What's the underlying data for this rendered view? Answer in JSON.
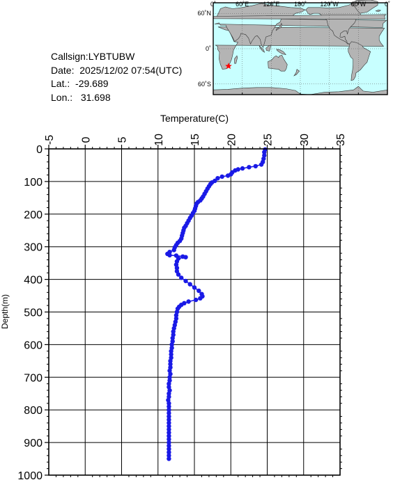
{
  "station": {
    "callsign_label": "Callsign:",
    "callsign": "LYBTUBW",
    "date_label": "Date:",
    "date": "2025/12/02 07:54(UTC)",
    "lat_label": "Lat.:",
    "lat": "-29.689",
    "lon_label": "Lon.:",
    "lon": "31.698"
  },
  "map": {
    "lon_labels": [
      "0˚",
      "60˚E",
      "120˚E",
      "180˚",
      "120˚W",
      "60˚W",
      "0˚"
    ],
    "lat_labels": [
      "60˚N",
      "0˚",
      "60˚S"
    ],
    "ocean_color": "#c8ffff",
    "land_color": "#b4b4b4",
    "marker_color": "#ff0000",
    "marker": {
      "lon": 31.698,
      "lat": -29.689
    }
  },
  "chart_data": {
    "type": "line",
    "xlabel": "Temperature(C)",
    "ylabel": "Depth(m)",
    "xlim": [
      -5,
      35
    ],
    "ylim": [
      0,
      1000
    ],
    "x_ticks": [
      -5,
      0,
      5,
      10,
      15,
      20,
      25,
      30,
      35
    ],
    "y_ticks": [
      0,
      100,
      200,
      300,
      400,
      500,
      600,
      700,
      800,
      900,
      1000
    ],
    "series_color": "#1a1ae6",
    "points": [
      [
        24.7,
        2
      ],
      [
        24.6,
        10
      ],
      [
        24.6,
        20
      ],
      [
        24.5,
        30
      ],
      [
        24.4,
        40
      ],
      [
        24.2,
        48
      ],
      [
        23.4,
        53
      ],
      [
        22.5,
        56
      ],
      [
        21.6,
        60
      ],
      [
        21.0,
        63
      ],
      [
        20.6,
        66
      ],
      [
        20.2,
        72
      ],
      [
        20.0,
        78
      ],
      [
        19.6,
        82
      ],
      [
        18.8,
        85
      ],
      [
        18.2,
        90
      ],
      [
        17.8,
        98
      ],
      [
        17.4,
        103
      ],
      [
        17.2,
        108
      ],
      [
        17.0,
        115
      ],
      [
        16.8,
        122
      ],
      [
        16.6,
        130
      ],
      [
        16.4,
        138
      ],
      [
        16.2,
        146
      ],
      [
        16.0,
        152
      ],
      [
        15.8,
        158
      ],
      [
        15.5,
        163
      ],
      [
        15.3,
        168
      ],
      [
        15.2,
        175
      ],
      [
        15.1,
        183
      ],
      [
        15.0,
        190
      ],
      [
        14.8,
        197
      ],
      [
        14.6,
        205
      ],
      [
        14.4,
        212
      ],
      [
        14.2,
        220
      ],
      [
        14.0,
        228
      ],
      [
        13.8,
        236
      ],
      [
        13.6,
        242
      ],
      [
        13.5,
        250
      ],
      [
        13.4,
        258
      ],
      [
        13.3,
        266
      ],
      [
        13.2,
        275
      ],
      [
        13.0,
        282
      ],
      [
        12.7,
        288
      ],
      [
        12.5,
        295
      ],
      [
        12.3,
        302
      ],
      [
        12.2,
        310
      ],
      [
        11.6,
        316
      ],
      [
        11.3,
        322
      ],
      [
        11.6,
        326
      ],
      [
        12.5,
        327
      ],
      [
        13.4,
        330
      ],
      [
        13.8,
        332
      ],
      [
        12.8,
        336
      ],
      [
        12.6,
        345
      ],
      [
        12.5,
        355
      ],
      [
        12.6,
        365
      ],
      [
        12.6,
        375
      ],
      [
        12.8,
        385
      ],
      [
        13.2,
        395
      ],
      [
        13.8,
        405
      ],
      [
        14.4,
        415
      ],
      [
        15.0,
        425
      ],
      [
        15.6,
        435
      ],
      [
        16.0,
        445
      ],
      [
        16.1,
        452
      ],
      [
        15.8,
        458
      ],
      [
        15.2,
        463
      ],
      [
        14.2,
        468
      ],
      [
        13.6,
        473
      ],
      [
        13.2,
        478
      ],
      [
        12.9,
        484
      ],
      [
        12.7,
        490
      ],
      [
        12.6,
        500
      ],
      [
        12.5,
        510
      ],
      [
        12.5,
        520
      ],
      [
        12.4,
        530
      ],
      [
        12.3,
        540
      ],
      [
        12.2,
        550
      ],
      [
        12.1,
        560
      ],
      [
        12.1,
        570
      ],
      [
        12.0,
        580
      ],
      [
        12.0,
        590
      ],
      [
        11.9,
        600
      ],
      [
        11.9,
        610
      ],
      [
        11.8,
        620
      ],
      [
        11.8,
        630
      ],
      [
        11.8,
        640
      ],
      [
        11.7,
        650
      ],
      [
        11.7,
        660
      ],
      [
        11.7,
        670
      ],
      [
        11.6,
        680
      ],
      [
        11.7,
        690
      ],
      [
        11.6,
        700
      ],
      [
        11.6,
        710
      ],
      [
        11.5,
        720
      ],
      [
        11.5,
        730
      ],
      [
        11.6,
        740
      ],
      [
        11.5,
        750
      ],
      [
        11.5,
        760
      ],
      [
        11.4,
        770
      ],
      [
        11.5,
        780
      ],
      [
        11.5,
        790
      ],
      [
        11.5,
        800
      ],
      [
        11.5,
        810
      ],
      [
        11.5,
        820
      ],
      [
        11.5,
        830
      ],
      [
        11.5,
        840
      ],
      [
        11.5,
        850
      ],
      [
        11.5,
        860
      ],
      [
        11.5,
        870
      ],
      [
        11.5,
        880
      ],
      [
        11.5,
        890
      ],
      [
        11.5,
        900
      ],
      [
        11.5,
        910
      ],
      [
        11.5,
        920
      ],
      [
        11.5,
        930
      ],
      [
        11.5,
        940
      ],
      [
        11.5,
        950
      ]
    ]
  }
}
